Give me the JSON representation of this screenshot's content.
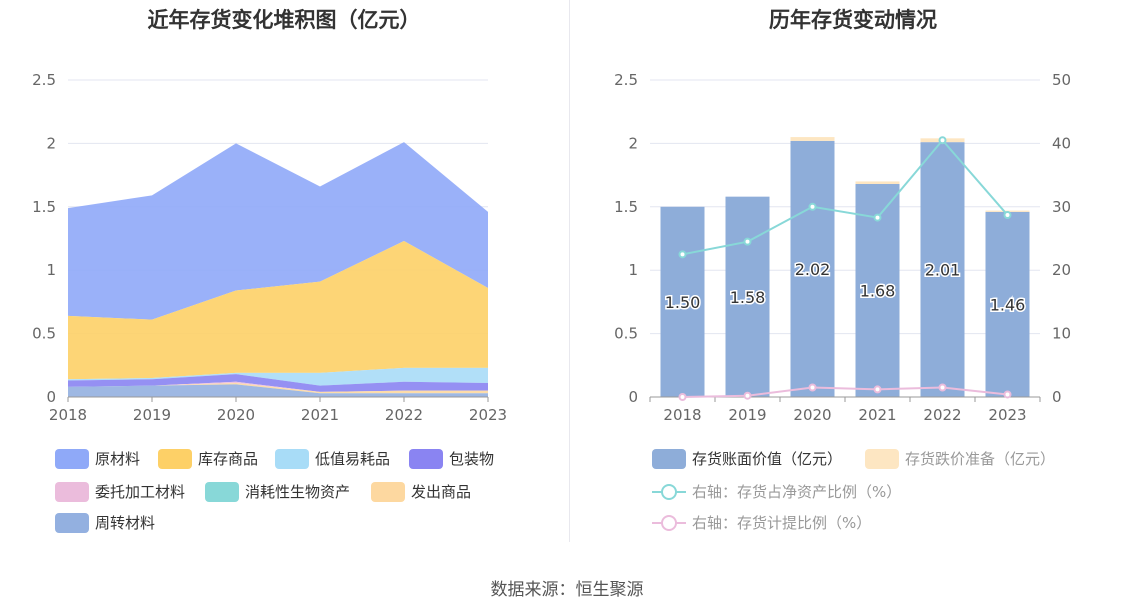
{
  "source_text": "数据来源：恒生聚源",
  "chart_data": [
    {
      "type": "area",
      "stacked": true,
      "title": "近年存货变化堆积图（亿元）",
      "categories": [
        "2018",
        "2019",
        "2020",
        "2021",
        "2022",
        "2023"
      ],
      "ylim": [
        0,
        2.5
      ],
      "yticks": [
        "0",
        "0.5",
        "1",
        "1.5",
        "2",
        "2.5"
      ],
      "grid": true,
      "legend_position": "bottom-left",
      "series": [
        {
          "name": "原材料",
          "color": "#8fa9f8",
          "values": [
            0.85,
            0.98,
            1.16,
            0.75,
            0.78,
            0.6
          ]
        },
        {
          "name": "库存商品",
          "color": "#fdd067",
          "values": [
            0.5,
            0.46,
            0.65,
            0.72,
            1.0,
            0.63
          ]
        },
        {
          "name": "低值易耗品",
          "color": "#a8dcf7",
          "values": [
            0.01,
            0.01,
            0.01,
            0.1,
            0.11,
            0.12
          ]
        },
        {
          "name": "包装物",
          "color": "#8a84f2",
          "values": [
            0.05,
            0.05,
            0.06,
            0.05,
            0.07,
            0.06
          ]
        },
        {
          "name": "委托加工材料",
          "color": "#ebbcdc",
          "values": [
            0.0,
            0.0,
            0.01,
            0.0,
            0.0,
            0.0
          ]
        },
        {
          "name": "消耗性生物资产",
          "color": "#88d8d8",
          "values": [
            0.0,
            0.0,
            0.0,
            0.0,
            0.0,
            0.0
          ]
        },
        {
          "name": "发出商品",
          "color": "#fdd8a0",
          "values": [
            0.0,
            0.0,
            0.01,
            0.01,
            0.02,
            0.02
          ]
        },
        {
          "name": "周转材料",
          "color": "#93b0e0",
          "values": [
            0.08,
            0.09,
            0.1,
            0.03,
            0.03,
            0.03
          ]
        }
      ]
    },
    {
      "type": "bar",
      "title": "历年存货变动情况",
      "categories": [
        "2018",
        "2019",
        "2020",
        "2021",
        "2022",
        "2023"
      ],
      "ylim": [
        0,
        2.5
      ],
      "yticks": [
        "0",
        "0.5",
        "1",
        "1.5",
        "2",
        "2.5"
      ],
      "y2lim": [
        0,
        50
      ],
      "y2ticks": [
        "0",
        "10",
        "20",
        "30",
        "40",
        "50"
      ],
      "grid": true,
      "legend_position": "bottom-left",
      "bar_series": [
        {
          "name": "存货账面价值（亿元）",
          "color": "#8eadd9",
          "values": [
            1.5,
            1.58,
            2.02,
            1.68,
            2.01,
            1.46
          ],
          "labels": [
            "1.50",
            "1.58",
            "2.02",
            "1.68",
            "2.01",
            "1.46"
          ]
        },
        {
          "name": "存货跌价准备（亿元）",
          "color": "#fde6c2",
          "values": [
            0.0,
            0.0,
            0.03,
            0.02,
            0.03,
            0.01
          ]
        }
      ],
      "line_series": [
        {
          "name": "右轴：存货占净资产比例（%）",
          "color": "#88d8d8",
          "values": [
            22.5,
            24.5,
            30.0,
            28.3,
            40.5,
            28.7
          ]
        },
        {
          "name": "右轴：存货计提比例（%）",
          "color": "#ebbcdc",
          "values": [
            0.0,
            0.2,
            1.5,
            1.2,
            1.5,
            0.4
          ]
        }
      ]
    }
  ]
}
